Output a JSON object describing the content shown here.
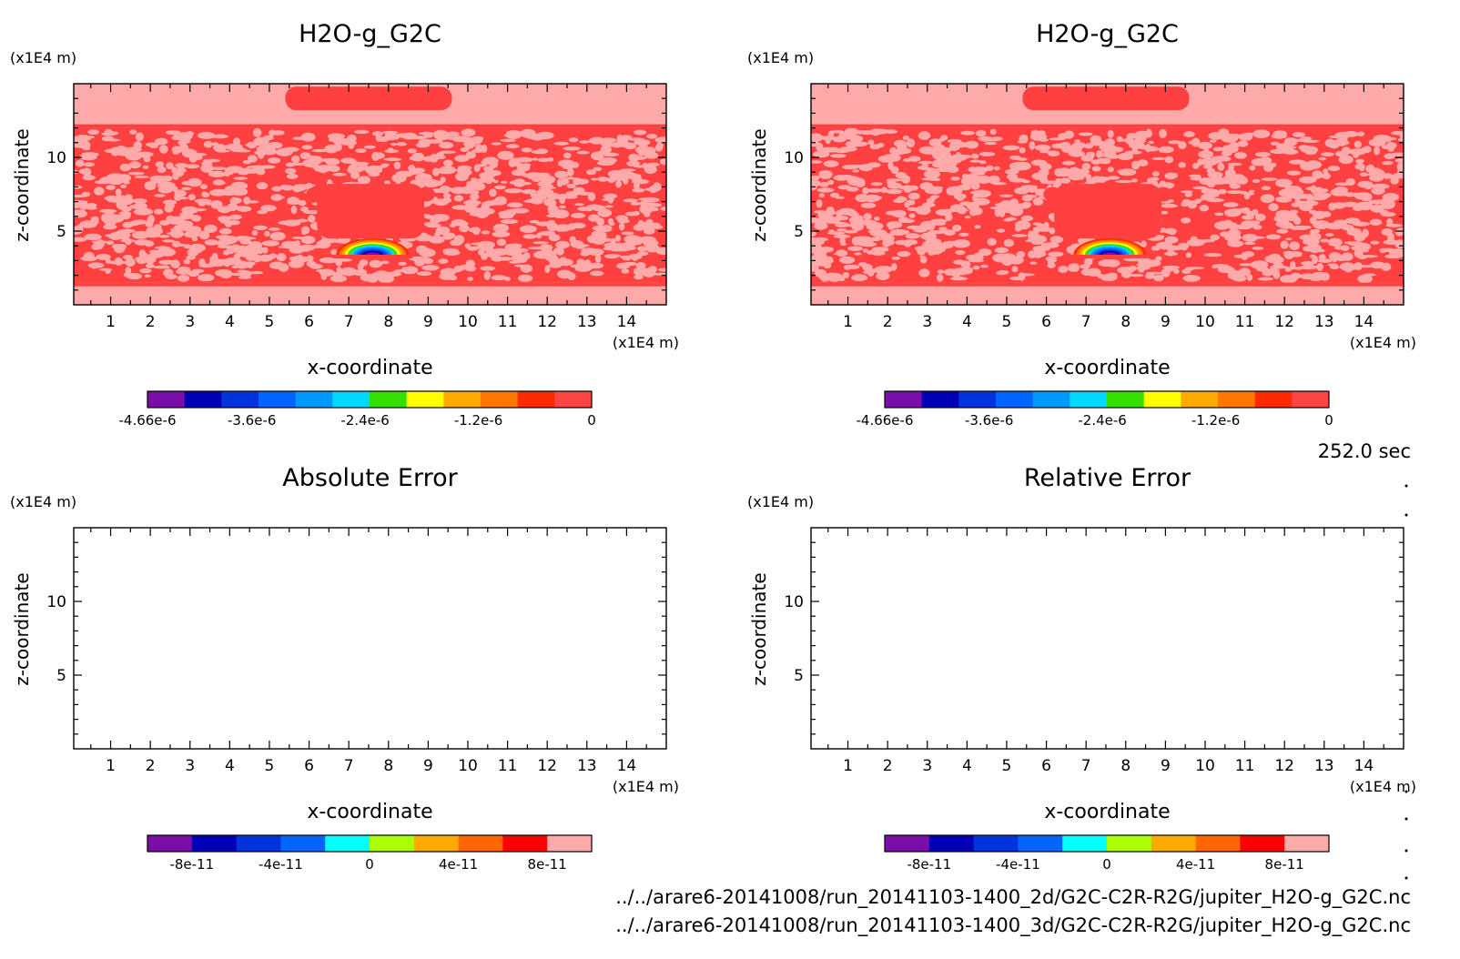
{
  "time_label": "252.0 sec",
  "files": [
    "../../arare6-20141008/run_20141103-1400_2d/G2C-C2R-R2G/jupiter_H2O-g_G2C.nc",
    "../../arare6-20141008/run_20141103-1400_3d/G2C-C2R-R2G/jupiter_H2O-g_G2C.nc"
  ],
  "chart_data": [
    {
      "type": "heatmap",
      "title": "H2O-g_G2C",
      "xlabel": "x-coordinate",
      "ylabel": "z-coordinate",
      "x_unit": "(x1E4 m)",
      "y_unit": "(x1E4 m)",
      "xlim": [
        0.07,
        15.0
      ],
      "ylim": [
        0.0,
        15.0
      ],
      "x_ticks": [
        "1",
        "2",
        "3",
        "4",
        "5",
        "6",
        "7",
        "8",
        "9",
        "10",
        "11",
        "12",
        "13",
        "14"
      ],
      "y_ticks": [
        "5",
        "10"
      ],
      "features": {
        "background_value": 0,
        "noisy_band_z": [
          1.5,
          12.0
        ],
        "upper_cap": {
          "x": [
            5.4,
            9.6
          ],
          "z": [
            13.2,
            14.8
          ]
        },
        "central_blob": {
          "x": [
            6.2,
            8.9
          ],
          "z": [
            4.5,
            8.2
          ]
        },
        "minimum_arc": {
          "center_x": 7.6,
          "center_z": 3.4,
          "min_value": -4.66e-06
        }
      },
      "colorbar": {
        "colors": [
          "#7b0ea8",
          "#0000b8",
          "#0033dd",
          "#0066ff",
          "#0099ff",
          "#00d8ff",
          "#33e000",
          "#ffff00",
          "#ffaa00",
          "#ff7700",
          "#ff2a00",
          "#ff4444"
        ],
        "tick_labels": [
          "-4.66e-6",
          "-3.6e-6",
          "-2.4e-6",
          "-1.2e-6",
          "0"
        ]
      }
    },
    {
      "type": "heatmap",
      "title": "H2O-g_G2C",
      "xlabel": "x-coordinate",
      "ylabel": "z-coordinate",
      "x_unit": "(x1E4 m)",
      "y_unit": "(x1E4 m)",
      "xlim": [
        0.07,
        15.0
      ],
      "ylim": [
        0.0,
        15.0
      ],
      "x_ticks": [
        "1",
        "2",
        "3",
        "4",
        "5",
        "6",
        "7",
        "8",
        "9",
        "10",
        "11",
        "12",
        "13",
        "14"
      ],
      "y_ticks": [
        "5",
        "10"
      ],
      "features": {
        "background_value": 0,
        "noisy_band_z": [
          1.5,
          12.0
        ],
        "upper_cap": {
          "x": [
            5.4,
            9.6
          ],
          "z": [
            13.2,
            14.8
          ]
        },
        "central_blob": {
          "x": [
            6.2,
            8.9
          ],
          "z": [
            4.5,
            8.2
          ]
        },
        "minimum_arc": {
          "center_x": 7.6,
          "center_z": 3.4,
          "min_value": -4.66e-06
        }
      },
      "colorbar": {
        "colors": [
          "#7b0ea8",
          "#0000b8",
          "#0033dd",
          "#0066ff",
          "#0099ff",
          "#00d8ff",
          "#33e000",
          "#ffff00",
          "#ffaa00",
          "#ff7700",
          "#ff2a00",
          "#ff4444"
        ],
        "tick_labels": [
          "-4.66e-6",
          "-3.6e-6",
          "-2.4e-6",
          "-1.2e-6",
          "0"
        ]
      }
    },
    {
      "type": "heatmap",
      "title": "Absolute Error",
      "xlabel": "x-coordinate",
      "ylabel": "z-coordinate",
      "x_unit": "(x1E4 m)",
      "y_unit": "(x1E4 m)",
      "xlim": [
        0.07,
        15.0
      ],
      "ylim": [
        0.0,
        15.0
      ],
      "x_ticks": [
        "1",
        "2",
        "3",
        "4",
        "5",
        "6",
        "7",
        "8",
        "9",
        "10",
        "11",
        "12",
        "13",
        "14"
      ],
      "y_ticks": [
        "5",
        "10"
      ],
      "features": {
        "background_value": 0
      },
      "colorbar": {
        "colors": [
          "#7b0ea8",
          "#0000b8",
          "#0033dd",
          "#0066ff",
          "#00ffff",
          "#aaff00",
          "#ffaa00",
          "#ff6600",
          "#ff0000",
          "#ffaaaa"
        ],
        "tick_labels": [
          "-8e-11",
          "-4e-11",
          "0",
          "4e-11",
          "8e-11"
        ]
      }
    },
    {
      "type": "heatmap",
      "title": "Relative Error",
      "xlabel": "x-coordinate",
      "ylabel": "z-coordinate",
      "x_unit": "(x1E4 m)",
      "y_unit": "(x1E4 m)",
      "xlim": [
        0.07,
        15.0
      ],
      "ylim": [
        0.0,
        15.0
      ],
      "x_ticks": [
        "1",
        "2",
        "3",
        "4",
        "5",
        "6",
        "7",
        "8",
        "9",
        "10",
        "11",
        "12",
        "13",
        "14"
      ],
      "y_ticks": [
        "5",
        "10"
      ],
      "features": {
        "background_value": 0
      },
      "colorbar": {
        "colors": [
          "#7b0ea8",
          "#0000b8",
          "#0033dd",
          "#0066ff",
          "#00ffff",
          "#aaff00",
          "#ffaa00",
          "#ff6600",
          "#ff0000",
          "#ffaaaa"
        ],
        "tick_labels": [
          "-8e-11",
          "-4e-11",
          "0",
          "4e-11",
          "8e-11"
        ]
      }
    }
  ]
}
